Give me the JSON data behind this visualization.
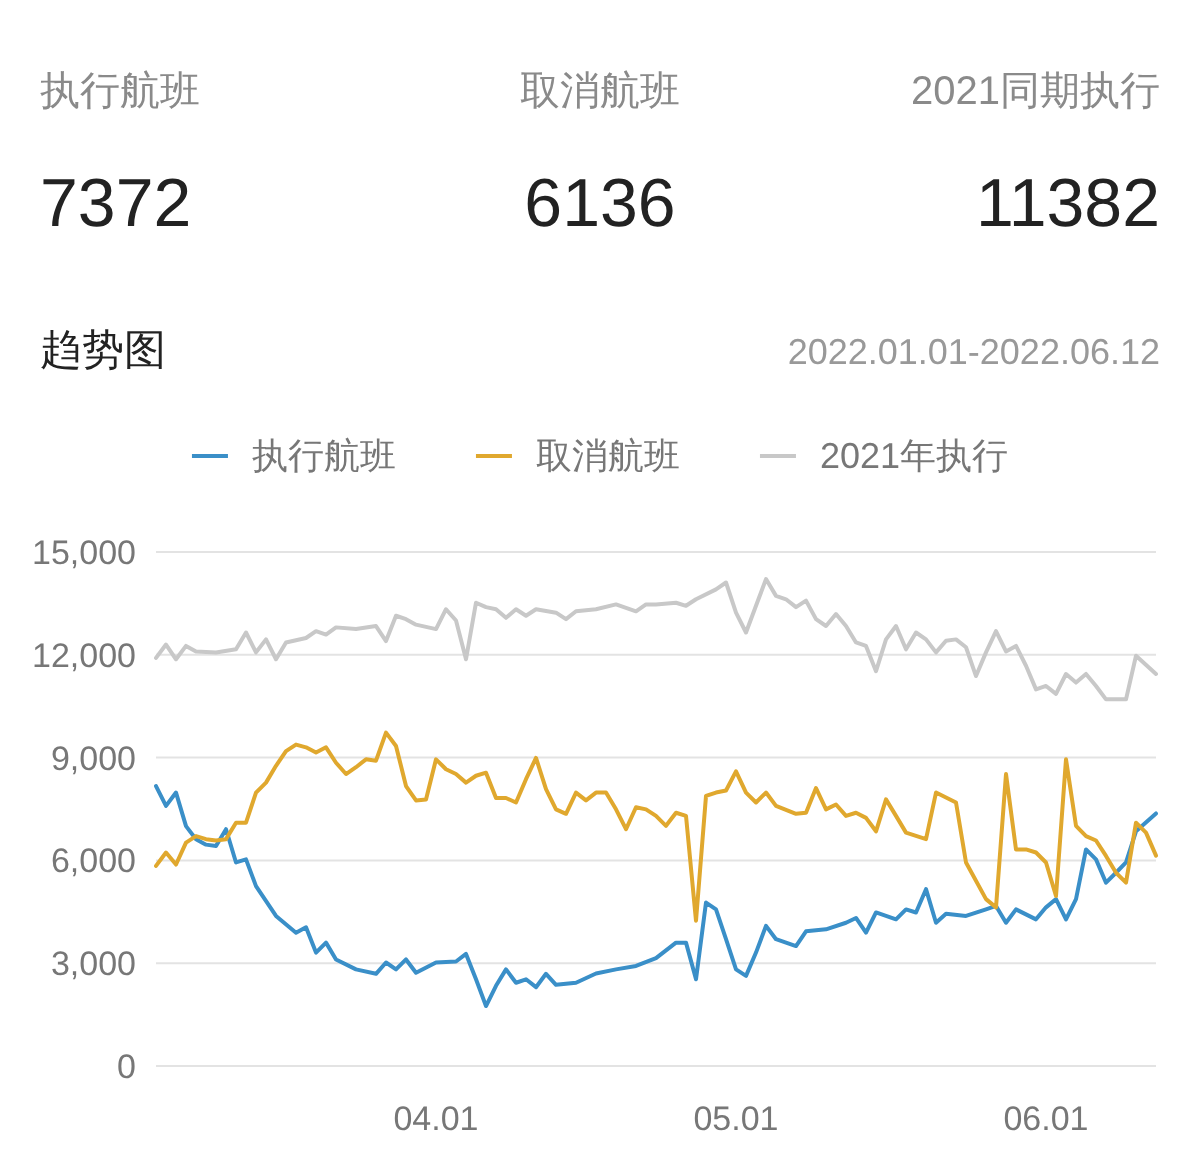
{
  "chart_data": [
    {
      "type": "other",
      "categories": [
        "执行航班",
        "取消航班",
        "2021同期执行"
      ],
      "values": [
        7372,
        6136,
        11382
      ],
      "data_labels": true
    },
    {
      "type": "line",
      "title": "趋势图",
      "subtitle": "2022.01.01-2022.06.12",
      "xlim": [
        "2022-03-04",
        "2022-06-12"
      ],
      "xticks": [
        {
          "value": "2022-04-01",
          "label": "04.01"
        },
        {
          "value": "2022-05-01",
          "label": "05.01"
        },
        {
          "value": "2022-06-01",
          "label": "06.01"
        }
      ],
      "ylim": [
        0,
        15000
      ],
      "yticks": [
        0,
        {
          "value": 3000,
          "label": "3,000"
        },
        {
          "value": 6000,
          "label": "6,000"
        },
        {
          "value": 9000,
          "label": "9,000"
        },
        {
          "value": 12000,
          "label": "12,000"
        },
        {
          "value": 15000,
          "label": "15,000"
        }
      ],
      "grid": "y",
      "legend": "top",
      "series": [
        {
          "name": "执行航班",
          "color": "#3a8fc8",
          "x": [
            "2022-03-04",
            "2022-03-05",
            "2022-03-06",
            "2022-03-07",
            "2022-03-08",
            "2022-03-09",
            "2022-03-10",
            "2022-03-11",
            "2022-03-12",
            "2022-03-13",
            "2022-03-14",
            "2022-03-16",
            "2022-03-18",
            "2022-03-19",
            "2022-03-20",
            "2022-03-21",
            "2022-03-22",
            "2022-03-24",
            "2022-03-26",
            "2022-03-27",
            "2022-03-28",
            "2022-03-29",
            "2022-03-30",
            "2022-04-01",
            "2022-04-03",
            "2022-04-04",
            "2022-04-05",
            "2022-04-06",
            "2022-04-07",
            "2022-04-08",
            "2022-04-09",
            "2022-04-10",
            "2022-04-11",
            "2022-04-12",
            "2022-04-13",
            "2022-04-15",
            "2022-04-17",
            "2022-04-19",
            "2022-04-21",
            "2022-04-23",
            "2022-04-25",
            "2022-04-26",
            "2022-04-27",
            "2022-04-28",
            "2022-04-29",
            "2022-04-30",
            "2022-05-01",
            "2022-05-02",
            "2022-05-03",
            "2022-05-04",
            "2022-05-05",
            "2022-05-07",
            "2022-05-08",
            "2022-05-10",
            "2022-05-12",
            "2022-05-13",
            "2022-05-14",
            "2022-05-15",
            "2022-05-17",
            "2022-05-18",
            "2022-05-19",
            "2022-05-20",
            "2022-05-21",
            "2022-05-22",
            "2022-05-24",
            "2022-05-26",
            "2022-05-27",
            "2022-05-28",
            "2022-05-29",
            "2022-05-31",
            "2022-06-01",
            "2022-06-02",
            "2022-06-03",
            "2022-06-04",
            "2022-06-05",
            "2022-06-06",
            "2022-06-07",
            "2022-06-08",
            "2022-06-09",
            "2022-06-10",
            "2022-06-12"
          ],
          "values": [
            8170,
            7590,
            7980,
            7000,
            6620,
            6460,
            6420,
            6910,
            5940,
            6030,
            5250,
            4380,
            3890,
            4050,
            3310,
            3600,
            3110,
            2820,
            2690,
            3020,
            2820,
            3110,
            2720,
            3020,
            3050,
            3270,
            2530,
            1750,
            2340,
            2820,
            2430,
            2530,
            2300,
            2690,
            2370,
            2430,
            2700,
            2820,
            2920,
            3150,
            3600,
            3600,
            2530,
            4770,
            4570,
            3700,
            2820,
            2630,
            3310,
            4090,
            3700,
            3500,
            3930,
            3990,
            4180,
            4320,
            3890,
            4480,
            4280,
            4570,
            4480,
            5160,
            4180,
            4440,
            4380,
            4570,
            4670,
            4180,
            4570,
            4280,
            4630,
            4870,
            4280,
            4870,
            6320,
            6030,
            5350,
            5640,
            5940,
            6850,
            7370
          ]
        },
        {
          "name": "取消航班",
          "color": "#e0a82e",
          "x": [
            "2022-03-04",
            "2022-03-05",
            "2022-03-06",
            "2022-03-07",
            "2022-03-08",
            "2022-03-09",
            "2022-03-10",
            "2022-03-11",
            "2022-03-12",
            "2022-03-13",
            "2022-03-14",
            "2022-03-15",
            "2022-03-16",
            "2022-03-17",
            "2022-03-18",
            "2022-03-19",
            "2022-03-20",
            "2022-03-21",
            "2022-03-22",
            "2022-03-23",
            "2022-03-24",
            "2022-03-25",
            "2022-03-26",
            "2022-03-27",
            "2022-03-28",
            "2022-03-29",
            "2022-03-30",
            "2022-03-31",
            "2022-04-01",
            "2022-04-02",
            "2022-04-03",
            "2022-04-04",
            "2022-04-05",
            "2022-04-06",
            "2022-04-07",
            "2022-04-08",
            "2022-04-09",
            "2022-04-10",
            "2022-04-11",
            "2022-04-12",
            "2022-04-13",
            "2022-04-14",
            "2022-04-15",
            "2022-04-16",
            "2022-04-17",
            "2022-04-18",
            "2022-04-19",
            "2022-04-20",
            "2022-04-21",
            "2022-04-22",
            "2022-04-23",
            "2022-04-24",
            "2022-04-25",
            "2022-04-26",
            "2022-04-27",
            "2022-04-28",
            "2022-04-29",
            "2022-04-30",
            "2022-05-01",
            "2022-05-02",
            "2022-05-03",
            "2022-05-04",
            "2022-05-05",
            "2022-05-07",
            "2022-05-08",
            "2022-05-09",
            "2022-05-10",
            "2022-05-11",
            "2022-05-12",
            "2022-05-13",
            "2022-05-14",
            "2022-05-15",
            "2022-05-16",
            "2022-05-17",
            "2022-05-18",
            "2022-05-20",
            "2022-05-21",
            "2022-05-23",
            "2022-05-24",
            "2022-05-26",
            "2022-05-27",
            "2022-05-28",
            "2022-05-29",
            "2022-05-30",
            "2022-05-31",
            "2022-06-01",
            "2022-06-02",
            "2022-06-03",
            "2022-06-04",
            "2022-06-05",
            "2022-06-06",
            "2022-06-07",
            "2022-06-08",
            "2022-06-09",
            "2022-06-10",
            "2022-06-11",
            "2022-06-12"
          ],
          "values": [
            5840,
            6230,
            5880,
            6520,
            6710,
            6620,
            6580,
            6620,
            7100,
            7100,
            7980,
            8270,
            8760,
            9190,
            9380,
            9300,
            9150,
            9300,
            8850,
            8520,
            8720,
            8950,
            8910,
            9730,
            9340,
            8170,
            7750,
            7780,
            8950,
            8660,
            8520,
            8270,
            8470,
            8560,
            7820,
            7820,
            7690,
            8370,
            8990,
            8080,
            7490,
            7360,
            7980,
            7750,
            7980,
            7980,
            7490,
            6910,
            7550,
            7490,
            7300,
            7010,
            7390,
            7300,
            4240,
            7880,
            7980,
            8040,
            8600,
            7980,
            7690,
            7980,
            7590,
            7360,
            7390,
            8110,
            7490,
            7630,
            7300,
            7390,
            7240,
            6850,
            7780,
            7300,
            6810,
            6620,
            7980,
            7690,
            5940,
            4870,
            4630,
            8520,
            6320,
            6320,
            6230,
            5940,
            4960,
            8950,
            7010,
            6710,
            6580,
            6130,
            5640,
            5350,
            7100,
            6810,
            6140
          ]
        },
        {
          "name": "2021年执行",
          "color": "#c8c8c8",
          "x": [
            "2022-03-04",
            "2022-03-05",
            "2022-03-06",
            "2022-03-07",
            "2022-03-08",
            "2022-03-10",
            "2022-03-12",
            "2022-03-13",
            "2022-03-14",
            "2022-03-15",
            "2022-03-16",
            "2022-03-17",
            "2022-03-19",
            "2022-03-20",
            "2022-03-21",
            "2022-03-22",
            "2022-03-24",
            "2022-03-26",
            "2022-03-27",
            "2022-03-28",
            "2022-03-29",
            "2022-03-30",
            "2022-04-01",
            "2022-04-02",
            "2022-04-03",
            "2022-04-04",
            "2022-04-05",
            "2022-04-06",
            "2022-04-07",
            "2022-04-08",
            "2022-04-09",
            "2022-04-10",
            "2022-04-11",
            "2022-04-13",
            "2022-04-14",
            "2022-04-15",
            "2022-04-17",
            "2022-04-19",
            "2022-04-21",
            "2022-04-22",
            "2022-04-23",
            "2022-04-25",
            "2022-04-26",
            "2022-04-27",
            "2022-04-29",
            "2022-04-30",
            "2022-05-01",
            "2022-05-02",
            "2022-05-03",
            "2022-05-04",
            "2022-05-05",
            "2022-05-06",
            "2022-05-07",
            "2022-05-08",
            "2022-05-09",
            "2022-05-10",
            "2022-05-11",
            "2022-05-12",
            "2022-05-13",
            "2022-05-14",
            "2022-05-15",
            "2022-05-16",
            "2022-05-17",
            "2022-05-18",
            "2022-05-19",
            "2022-05-20",
            "2022-05-21",
            "2022-05-22",
            "2022-05-23",
            "2022-05-24",
            "2022-05-25",
            "2022-05-26",
            "2022-05-27",
            "2022-05-28",
            "2022-05-29",
            "2022-05-30",
            "2022-05-31",
            "2022-06-01",
            "2022-06-02",
            "2022-06-03",
            "2022-06-04",
            "2022-06-05",
            "2022-06-06",
            "2022-06-07",
            "2022-06-09",
            "2022-06-10",
            "2022-06-12"
          ],
          "values": [
            11910,
            12300,
            11870,
            12260,
            12100,
            12070,
            12160,
            12650,
            12070,
            12450,
            11870,
            12360,
            12490,
            12690,
            12590,
            12800,
            12750,
            12840,
            12400,
            13140,
            13040,
            12880,
            12750,
            13330,
            13000,
            11870,
            13520,
            13390,
            13330,
            13080,
            13330,
            13140,
            13330,
            13230,
            13040,
            13270,
            13330,
            13470,
            13270,
            13470,
            13470,
            13520,
            13430,
            13620,
            13910,
            14110,
            13230,
            12650,
            13430,
            14210,
            13720,
            13620,
            13390,
            13580,
            13040,
            12840,
            13190,
            12840,
            12360,
            12260,
            11520,
            12450,
            12840,
            12160,
            12650,
            12450,
            12070,
            12410,
            12450,
            12220,
            11380,
            12070,
            12690,
            12100,
            12260,
            11680,
            10990,
            11090,
            10860,
            11440,
            11190,
            11440,
            11090,
            10700,
            10700,
            11970,
            11440
          ]
        }
      ]
    }
  ]
}
